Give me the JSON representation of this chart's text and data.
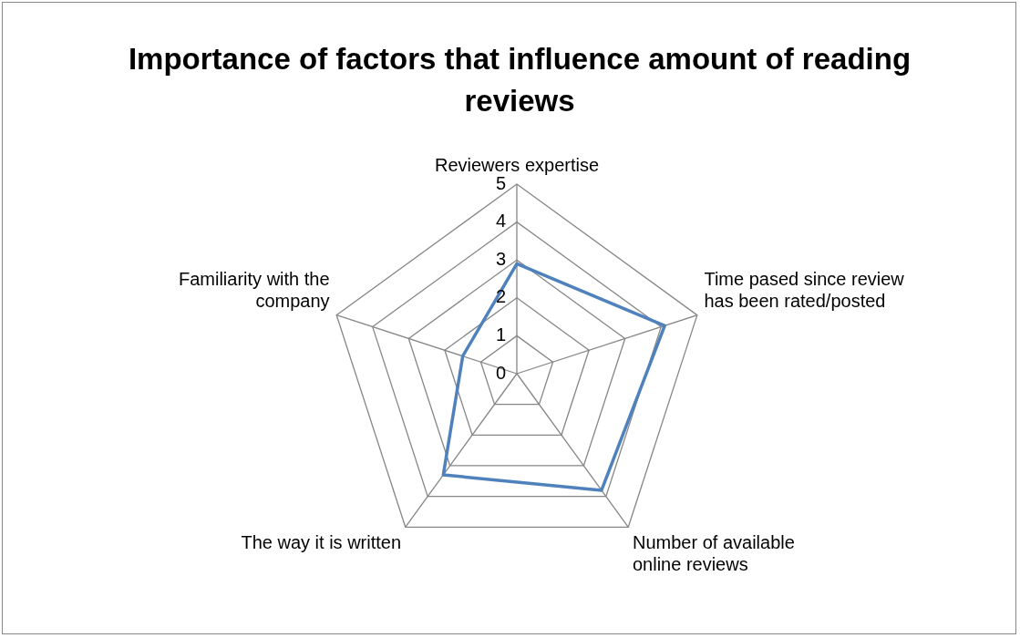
{
  "chart_data": {
    "type": "radar",
    "title": "Importance of factors that influence amount of reading reviews",
    "categories": [
      "Reviewers expertise",
      "Time pased since review has been rated/posted",
      "Number of available online reviews",
      "The way it is written",
      "Familiarity with the company"
    ],
    "series": [
      {
        "color": "#4f81bd",
        "values": [
          2.9,
          4.1,
          3.8,
          3.3,
          1.5
        ]
      }
    ],
    "ylim": [
      0,
      5
    ],
    "yticks": [
      0,
      1,
      2,
      3,
      4,
      5
    ],
    "grid": true,
    "legend": false,
    "marker": "none",
    "line_style": "solid"
  }
}
